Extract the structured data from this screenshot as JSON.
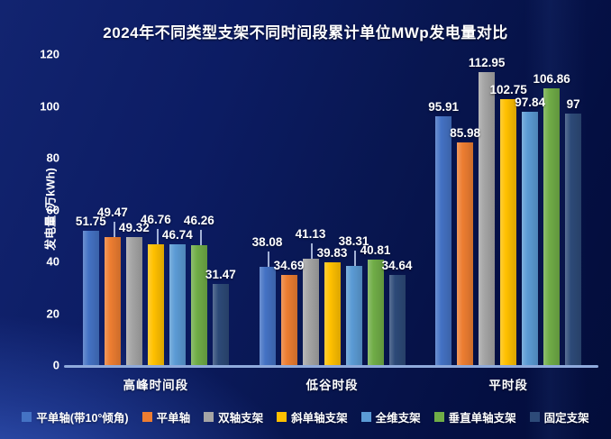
{
  "title": "2024年不同类型支架不同时间段累计单位MWp发电量对比",
  "colors": {
    "background_top": "#0c1c63",
    "background_glow": "#4a76e6",
    "axis_line": "#8faadc",
    "text": "#ffffff"
  },
  "chart_data": {
    "type": "bar",
    "title": "2024年不同类型支架不同时间段累计单位MWp发电量对比",
    "xlabel": "",
    "ylabel": "发电量 (万kWh)",
    "ylim": [
      0,
      120
    ],
    "yticks": [
      0,
      20,
      40,
      60,
      80,
      100,
      120
    ],
    "grid": false,
    "legend_position": "bottom",
    "categories": [
      "高峰时间段",
      "低谷时段",
      "平时段"
    ],
    "series": [
      {
        "name": "平单轴(带10°倾角)",
        "color": "#4472C4",
        "values": [
          51.75,
          38.08,
          95.91
        ]
      },
      {
        "name": "平单轴",
        "color": "#ED7D31",
        "values": [
          49.47,
          34.69,
          85.98
        ]
      },
      {
        "name": "双轴支架",
        "color": "#A5A5A5",
        "values": [
          49.32,
          41.13,
          112.95
        ]
      },
      {
        "name": "斜单轴支架",
        "color": "#FFC000",
        "values": [
          46.76,
          39.83,
          102.75
        ]
      },
      {
        "name": "全维支架",
        "color": "#5B9BD5",
        "values": [
          46.74,
          38.31,
          97.84
        ]
      },
      {
        "name": "垂直单轴支架",
        "color": "#70AD47",
        "values": [
          46.26,
          40.81,
          106.86
        ]
      },
      {
        "name": "固定支架",
        "color": "#2D4A78",
        "values": [
          31.47,
          34.64,
          97
        ]
      }
    ],
    "label_raised": [
      [
        false,
        true,
        false,
        true,
        false,
        true,
        false
      ],
      [
        true,
        false,
        true,
        false,
        true,
        false,
        false
      ],
      [
        false,
        false,
        false,
        false,
        false,
        false,
        false
      ]
    ]
  }
}
